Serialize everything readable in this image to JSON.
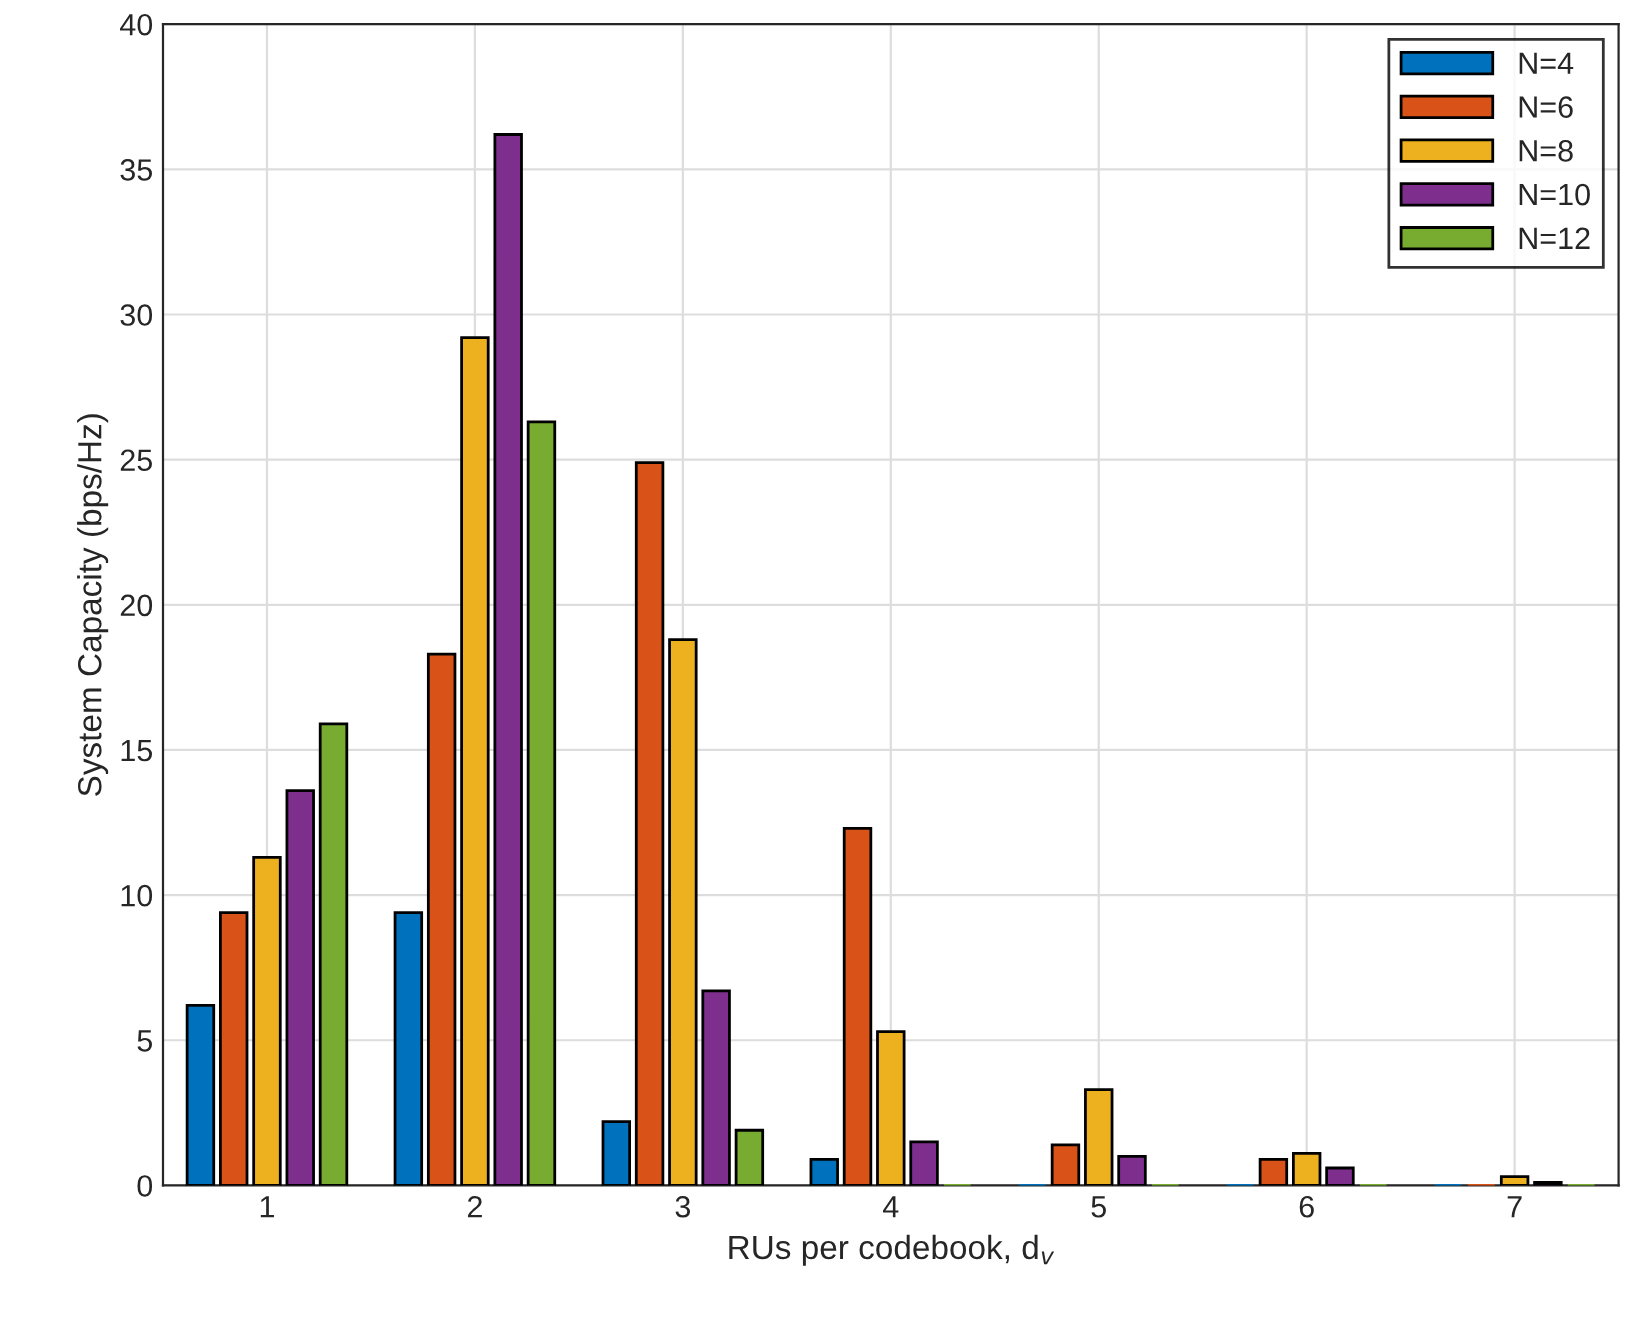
{
  "chart_data": {
    "type": "bar",
    "xlabel": "RUs per codebook, d$_{v}$",
    "ylabel": "System Capacity (bps/Hz)",
    "categories": [
      "1",
      "2",
      "3",
      "4",
      "5",
      "6",
      "7"
    ],
    "series": [
      {
        "name": "N=4",
        "color": "#0072bd",
        "values": [
          6.2,
          9.4,
          2.2,
          0.9,
          0,
          0,
          0
        ]
      },
      {
        "name": "N=6",
        "color": "#d95319",
        "values": [
          9.4,
          18.3,
          24.9,
          12.3,
          1.4,
          0.9,
          0
        ]
      },
      {
        "name": "N=8",
        "color": "#edb120",
        "values": [
          11.3,
          29.2,
          18.8,
          5.3,
          3.3,
          1.1,
          0.3
        ]
      },
      {
        "name": "N=10",
        "color": "#7e2f8e",
        "values": [
          13.6,
          36.2,
          6.7,
          1.5,
          1.0,
          0.6,
          0.1
        ]
      },
      {
        "name": "N=12",
        "color": "#77ac30",
        "values": [
          15.9,
          26.3,
          1.9,
          0,
          0,
          0,
          0
        ]
      }
    ],
    "ylim": [
      0,
      40
    ],
    "yticks": [
      0,
      5,
      10,
      15,
      20,
      25,
      30,
      35,
      40
    ],
    "grid": true,
    "legend": "top right"
  }
}
